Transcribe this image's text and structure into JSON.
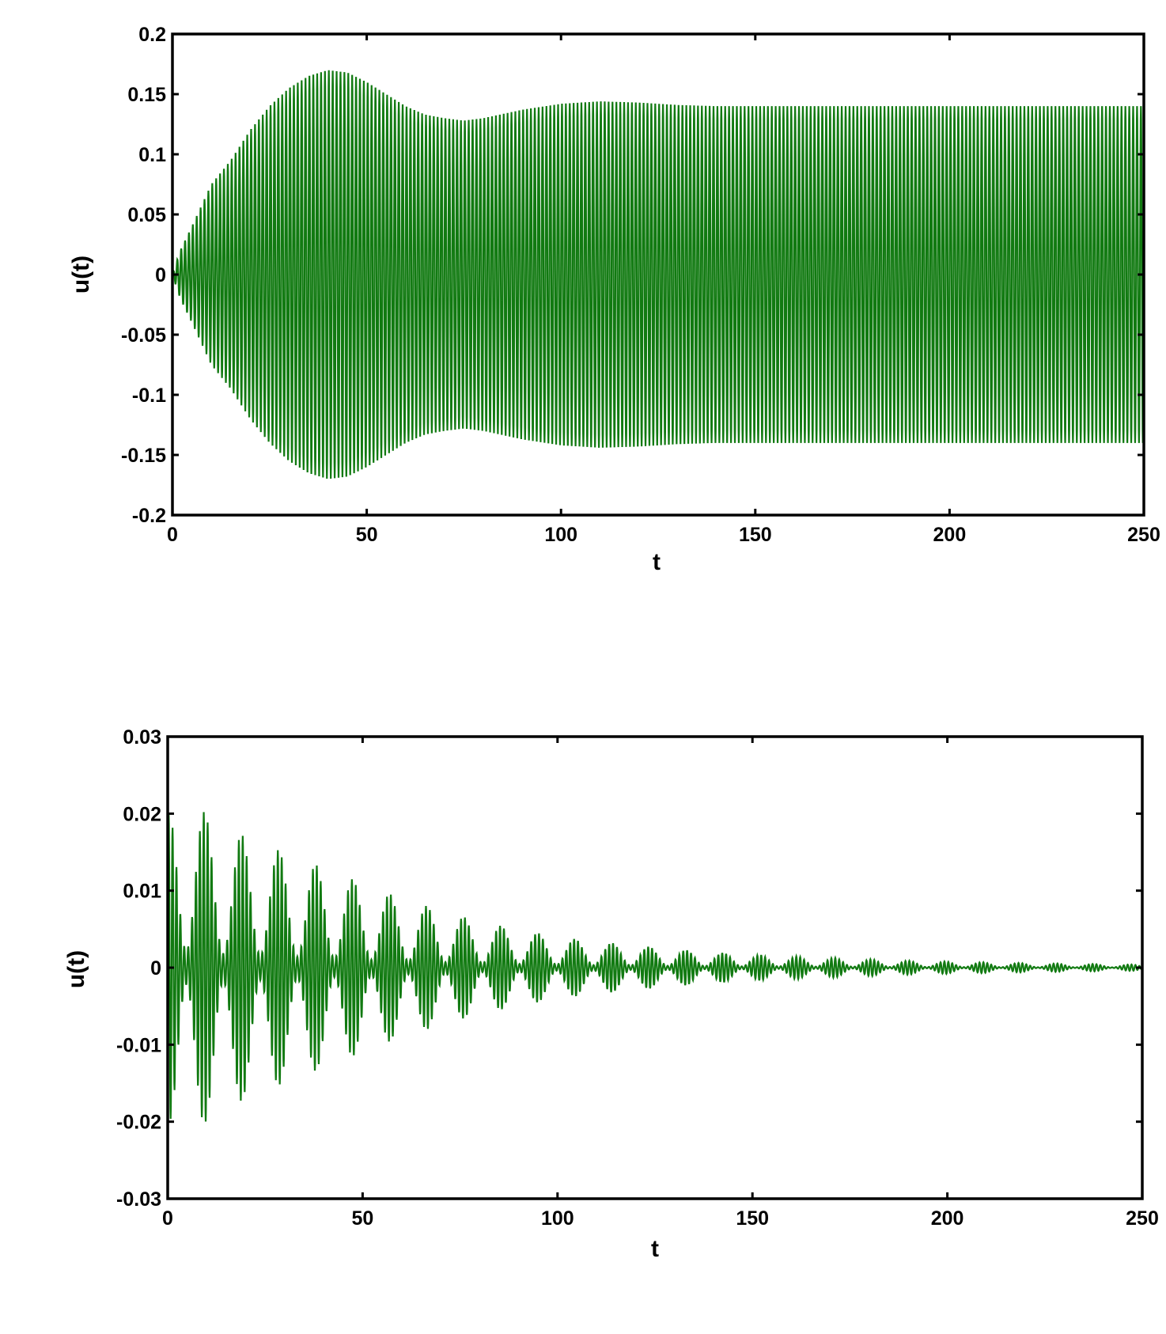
{
  "chart_data": [
    {
      "type": "line",
      "xlabel": "t",
      "ylabel": "u(t)",
      "xlim": [
        0,
        250
      ],
      "ylim": [
        -0.2,
        0.2
      ],
      "xticks": [
        0,
        50,
        100,
        150,
        200,
        250
      ],
      "yticks": [
        0.2,
        0.15,
        0.1,
        0.05,
        0,
        -0.05,
        -0.1,
        -0.15,
        -0.2
      ],
      "xtick_labels": [
        "0",
        "50",
        "100",
        "150",
        "200",
        "250"
      ],
      "ytick_labels": [
        "0.2",
        "0.15",
        "0.1",
        "0.05",
        "0",
        "-0.05",
        "-0.1",
        "-0.15",
        "-0.2"
      ],
      "grid": false,
      "line_color": "#117a11",
      "series": [
        {
          "oscillation_period": 1.0,
          "envelope": {
            "t": [
              0,
              2,
              5,
              10,
              15,
              20,
              25,
              30,
              35,
              40,
              45,
              50,
              55,
              60,
              65,
              70,
              75,
              80,
              90,
              100,
              110,
              120,
              130,
              140,
              150,
              200,
              250
            ],
            "amplitude": [
              0.0,
              0.02,
              0.04,
              0.075,
              0.095,
              0.12,
              0.14,
              0.155,
              0.165,
              0.17,
              0.168,
              0.16,
              0.15,
              0.14,
              0.133,
              0.13,
              0.128,
              0.13,
              0.137,
              0.142,
              0.144,
              0.143,
              0.141,
              0.14,
              0.14,
              0.14,
              0.14
            ]
          }
        }
      ]
    },
    {
      "type": "line",
      "xlabel": "t",
      "ylabel": "u(t)",
      "xlim": [
        0,
        250
      ],
      "ylim": [
        -0.03,
        0.03
      ],
      "xticks": [
        0,
        50,
        100,
        150,
        200,
        250
      ],
      "yticks": [
        0.03,
        0.02,
        0.01,
        0,
        -0.01,
        -0.02,
        -0.03
      ],
      "xtick_labels": [
        "0",
        "50",
        "100",
        "150",
        "200",
        "250"
      ],
      "ytick_labels": [
        "0.03",
        "0.02",
        "0.01",
        "0",
        "-0.01",
        "-0.02",
        "-0.03"
      ],
      "grid": false,
      "line_color": "#117a11",
      "series": [
        {
          "oscillation_period": 1.0,
          "beat_period": 9.5,
          "envelope": {
            "t": [
              0,
              3,
              10,
              20,
              30,
              40,
              50,
              60,
              70,
              80,
              90,
              100,
              110,
              120,
              130,
              140,
              150,
              160,
              170,
              180,
              190,
              200,
              220,
              250
            ],
            "amplitude": [
              0.02,
              0.023,
              0.02,
              0.017,
              0.015,
              0.013,
              0.011,
              0.009,
              0.0075,
              0.006,
              0.005,
              0.004,
              0.0034,
              0.0029,
              0.0024,
              0.002,
              0.0017,
              0.0015,
              0.0013,
              0.0011,
              0.0009,
              0.0008,
              0.0006,
              0.0004
            ]
          }
        }
      ]
    }
  ]
}
